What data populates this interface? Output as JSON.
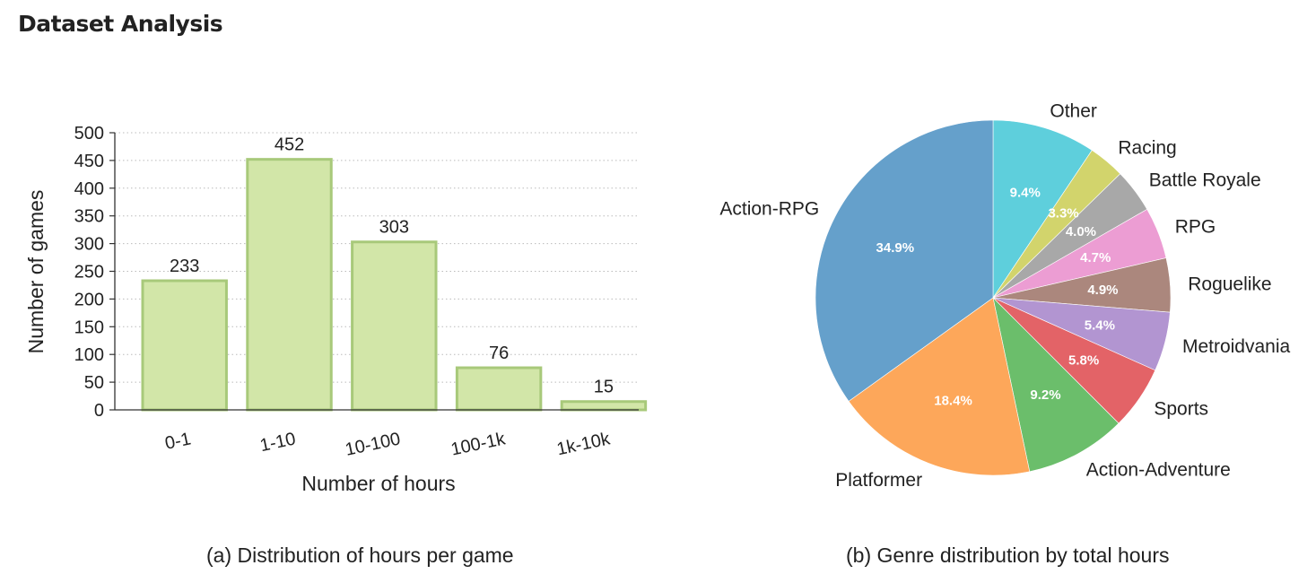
{
  "page": {
    "title": "Dataset Analysis"
  },
  "captions": {
    "a": "(a) Distribution of hours per game",
    "b": "(b) Genre distribution by total hours"
  },
  "colors": {
    "bar_fill": "#d2e6a8",
    "bar_stroke": "#a8c97a",
    "pie": {
      "Action-RPG": "#65a0cb",
      "Platformer": "#fda75a",
      "Action-Adventure": "#6bbe6b",
      "Sports": "#e36367",
      "Metroidvania": "#b295d1",
      "Roguelike": "#ab877d",
      "RPG": "#ec9dd3",
      "Battle Royale": "#a8a8a8",
      "Racing": "#d2d46c",
      "Other": "#5ecfdc"
    }
  },
  "chart_data": [
    {
      "type": "bar",
      "categories": [
        "0-1",
        "1-10",
        "10-100",
        "100-1k",
        "1k-10k"
      ],
      "values": [
        233,
        452,
        303,
        76,
        15
      ],
      "data_labels": [
        "233",
        "452",
        "303",
        "76",
        "15"
      ],
      "xlabel": "Number of hours",
      "ylabel": "Number of games",
      "ylim": [
        0,
        500
      ],
      "yticks": [
        "0",
        "50",
        "100",
        "150",
        "200",
        "250",
        "300",
        "350",
        "400",
        "450",
        "500"
      ],
      "grid": "y-dotted"
    },
    {
      "type": "pie",
      "labels": [
        "Other",
        "Racing",
        "Battle Royale",
        "RPG",
        "Roguelike",
        "Metroidvania",
        "Sports",
        "Action-Adventure",
        "Platformer",
        "Action-RPG"
      ],
      "values": [
        9.4,
        3.3,
        4.0,
        4.7,
        4.9,
        5.4,
        5.8,
        9.2,
        18.4,
        34.9
      ],
      "pct_labels": [
        "9.4%",
        "3.3%",
        "4.0%",
        "4.7%",
        "4.9%",
        "5.4%",
        "5.8%",
        "9.2%",
        "18.4%",
        "34.9%"
      ],
      "start": "top",
      "direction": "clockwise"
    }
  ]
}
